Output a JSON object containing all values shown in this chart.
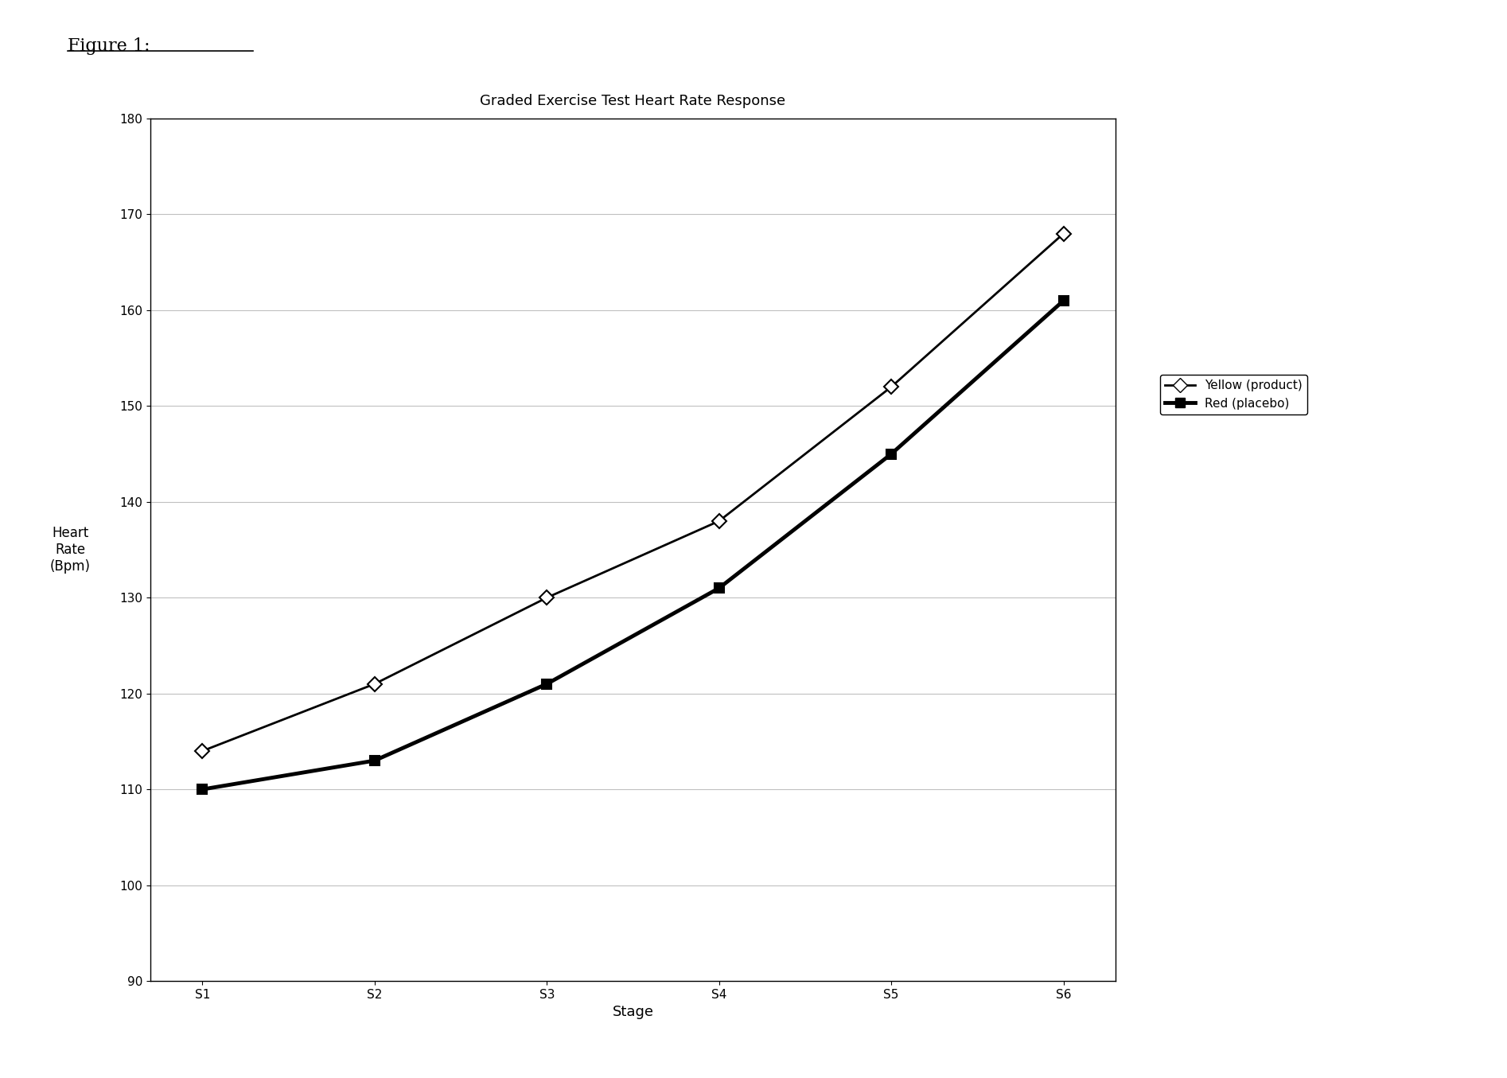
{
  "title": "Graded Exercise Test Heart Rate Response",
  "figure_label": "Figure 1:",
  "xlabel": "Stage",
  "ylabel": "Heart\nRate\n(Bpm)",
  "stages": [
    "S1",
    "S2",
    "S3",
    "S4",
    "S5",
    "S6"
  ],
  "yellow_product": [
    114,
    121,
    130,
    138,
    152,
    168
  ],
  "red_placebo": [
    110,
    113,
    121,
    131,
    145,
    161
  ],
  "ylim": [
    90,
    180
  ],
  "yticks": [
    90,
    100,
    110,
    120,
    130,
    140,
    150,
    160,
    170,
    180
  ],
  "line_color": "#000000",
  "legend_yellow_label": "Yellow (product)",
  "legend_red_label": "Red (placebo)",
  "background_color": "#ffffff",
  "title_fontsize": 13,
  "axis_label_fontsize": 12,
  "tick_fontsize": 11,
  "legend_fontsize": 11,
  "figure_label_fontsize": 16
}
